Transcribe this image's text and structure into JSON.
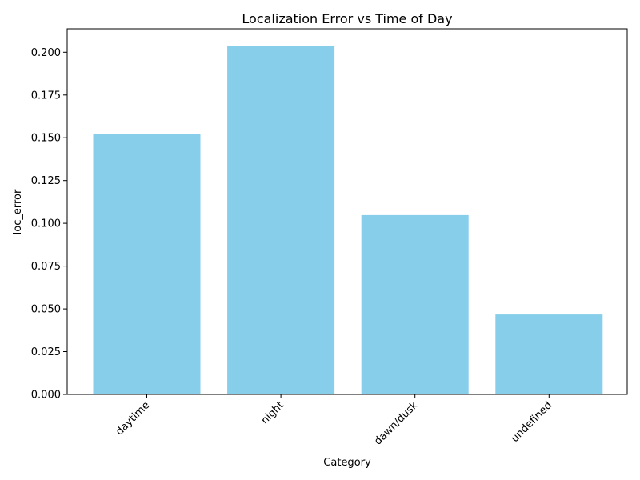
{
  "chart_data": {
    "type": "bar",
    "title": "Localization Error vs Time of Day",
    "xlabel": "Category",
    "ylabel": "loc_error",
    "categories": [
      "daytime",
      "night",
      "dawn/dusk",
      "undefined"
    ],
    "values": [
      0.1523,
      0.2035,
      0.1048,
      0.0467
    ],
    "ylim": [
      0,
      0.2137
    ],
    "yticks": [
      "0.000",
      "0.025",
      "0.050",
      "0.075",
      "0.100",
      "0.125",
      "0.150",
      "0.175",
      "0.200"
    ],
    "ytick_values": [
      0,
      0.025,
      0.05,
      0.075,
      0.1,
      0.125,
      0.15,
      0.175,
      0.2
    ],
    "bar_color": "#87ceeb",
    "x_tick_rotation": -45,
    "grid": false,
    "legend": "none"
  }
}
